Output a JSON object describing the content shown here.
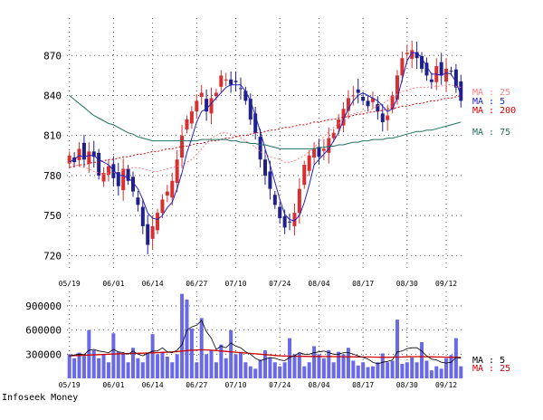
{
  "credit": "Infoseek Money",
  "colors": {
    "up": "#d83030",
    "down": "#20208a",
    "ma5": "#2020c0",
    "ma25": "#ff8080",
    "ma75": "#207060",
    "ma200": "#d00000",
    "volume": "#6a6ae8",
    "volume_ma5": "#000000",
    "volume_ma25": "#d00000",
    "grid": "#555555"
  },
  "chart_data": [
    {
      "type": "candlestick",
      "y_ticks": [
        720,
        750,
        780,
        810,
        840,
        870
      ],
      "ylim": [
        708,
        898
      ],
      "x_tick_labels": [
        "05/19",
        "06/01",
        "06/14",
        "06/27",
        "07/10",
        "07/24",
        "08/04",
        "08/17",
        "08/30",
        "09/12"
      ],
      "legend": [
        {
          "label": "MA : 25",
          "color_key": "ma25"
        },
        {
          "label": "MA : 5",
          "color_key": "ma5"
        },
        {
          "label": "MA : 200",
          "color_key": "ma200"
        },
        {
          "label": "MA : 75",
          "color_key": "ma75"
        }
      ],
      "closes": [
        795,
        790,
        800,
        792,
        798,
        794,
        780,
        782,
        787,
        778,
        772,
        785,
        776,
        768,
        758,
        742,
        728,
        742,
        752,
        762,
        768,
        776,
        792,
        810,
        822,
        828,
        836,
        842,
        828,
        838,
        842,
        855,
        852,
        848,
        850,
        845,
        836,
        822,
        812,
        792,
        780,
        770,
        758,
        748,
        741,
        745,
        752,
        770,
        788,
        795,
        800,
        794,
        800,
        808,
        812,
        822,
        830,
        838,
        840,
        842,
        836,
        832,
        838,
        828,
        820,
        825,
        840,
        855,
        868,
        872,
        874,
        868,
        860,
        855,
        850,
        862,
        855,
        860,
        858,
        846,
        836
      ],
      "ma5": [
        790,
        792,
        795,
        794,
        795,
        795,
        792,
        790,
        788,
        784,
        780,
        780,
        778,
        775,
        770,
        762,
        752,
        748,
        747,
        750,
        756,
        760,
        770,
        782,
        797,
        808,
        820,
        828,
        830,
        834,
        838,
        842,
        846,
        848,
        848,
        848,
        843,
        836,
        825,
        813,
        800,
        788,
        775,
        762,
        751,
        747,
        746,
        750,
        760,
        773,
        788,
        792,
        796,
        800,
        806,
        812,
        822,
        830,
        836,
        840,
        842,
        840,
        838,
        836,
        832,
        828,
        830,
        838,
        852,
        866,
        872,
        872,
        868,
        862,
        856,
        856,
        855,
        857,
        856,
        850,
        840
      ],
      "ma25": [
        790,
        788,
        787,
        786,
        785,
        783,
        782,
        781,
        782,
        782,
        783,
        784,
        785,
        786,
        786,
        785,
        784,
        783,
        783,
        784,
        785,
        786,
        787,
        788,
        790,
        792,
        796,
        800,
        804,
        808,
        810,
        812,
        812,
        811,
        810,
        808,
        806,
        804,
        801,
        798,
        796,
        794,
        793,
        792,
        790,
        790,
        791,
        793,
        795,
        798,
        801,
        805,
        809,
        813,
        816,
        819,
        822,
        825,
        826,
        827,
        828,
        829,
        830,
        832,
        834,
        836,
        839,
        841,
        843,
        844,
        845,
        846,
        846,
        846,
        847,
        847,
        847,
        848,
        848,
        847,
        846
      ],
      "ma75": [
        840,
        837,
        834,
        831,
        828,
        825,
        823,
        821,
        819,
        818,
        816,
        814,
        812,
        811,
        809,
        808,
        807,
        806,
        806,
        806,
        806,
        806,
        806,
        806,
        806,
        806,
        806,
        807,
        807,
        807,
        807,
        807,
        807,
        806,
        806,
        805,
        805,
        804,
        804,
        803,
        803,
        802,
        801,
        800,
        800,
        800,
        800,
        800,
        800,
        800,
        800,
        801,
        801,
        802,
        802,
        803,
        803,
        804,
        805,
        805,
        806,
        806,
        807,
        807,
        807,
        808,
        808,
        809,
        810,
        811,
        812,
        813,
        813,
        814,
        814,
        815,
        816,
        817,
        818,
        819,
        820
      ],
      "ma200": [
        786,
        787,
        788,
        788,
        789,
        790,
        790,
        791,
        792,
        792,
        793,
        794,
        794,
        795,
        796,
        796,
        797,
        798,
        798,
        799,
        800,
        800,
        801,
        802,
        802,
        803,
        804,
        804,
        805,
        806,
        806,
        807,
        808,
        808,
        809,
        810,
        810,
        811,
        812,
        812,
        813,
        814,
        814,
        815,
        816,
        816,
        817,
        818,
        818,
        819,
        820,
        820,
        821,
        822,
        822,
        823,
        824,
        824,
        825,
        826,
        826,
        827,
        828,
        828,
        829,
        830,
        830,
        831,
        832,
        832,
        833,
        834,
        834,
        835,
        836,
        836,
        837,
        838,
        838,
        839,
        840
      ]
    },
    {
      "type": "bar",
      "y_ticks": [
        300000,
        600000,
        900000
      ],
      "y_tick_labels": [
        "300000",
        "600000",
        "900000"
      ],
      "ylim": [
        0,
        1080000
      ],
      "x_tick_labels": [
        "05/19",
        "06/01",
        "06/14",
        "06/27",
        "07/10",
        "07/24",
        "08/04",
        "08/17",
        "08/30",
        "09/12"
      ],
      "legend": [
        {
          "label": "MA : 5",
          "color_key": "volume_ma5"
        },
        {
          "label": "MA : 25",
          "color_key": "volume_ma25"
        }
      ],
      "volumes": [
        300000,
        250000,
        320000,
        280000,
        600000,
        350000,
        250000,
        300000,
        200000,
        560000,
        330000,
        300000,
        200000,
        380000,
        250000,
        200000,
        320000,
        550000,
        300000,
        330000,
        270000,
        200000,
        300000,
        1050000,
        980000,
        620000,
        200000,
        750000,
        300000,
        350000,
        200000,
        420000,
        250000,
        600000,
        300000,
        330000,
        200000,
        150000,
        120000,
        230000,
        350000,
        260000,
        200000,
        150000,
        200000,
        500000,
        300000,
        320000,
        150000,
        200000,
        400000,
        300000,
        250000,
        350000,
        200000,
        330000,
        300000,
        380000,
        220000,
        160000,
        200000,
        140000,
        150000,
        200000,
        310000,
        200000,
        220000,
        730000,
        180000,
        200000,
        260000,
        200000,
        450000,
        220000,
        100000,
        150000,
        120000,
        250000,
        290000,
        500000,
        150000
      ],
      "vol_ma5": [
        280000,
        290000,
        300000,
        295000,
        350000,
        360000,
        340000,
        330000,
        320000,
        360000,
        330000,
        320000,
        300000,
        340000,
        300000,
        280000,
        310000,
        340000,
        340000,
        380000,
        330000,
        320000,
        350000,
        420000,
        600000,
        640000,
        660000,
        720000,
        580000,
        500000,
        360000,
        400000,
        380000,
        440000,
        400000,
        380000,
        330000,
        300000,
        250000,
        220000,
        240000,
        260000,
        250000,
        230000,
        220000,
        260000,
        280000,
        320000,
        300000,
        300000,
        320000,
        330000,
        340000,
        320000,
        300000,
        300000,
        320000,
        320000,
        300000,
        280000,
        260000,
        240000,
        200000,
        180000,
        200000,
        210000,
        230000,
        330000,
        340000,
        370000,
        380000,
        380000,
        340000,
        280000,
        240000,
        230000,
        200000,
        190000,
        200000,
        260000,
        250000
      ],
      "vol_ma25": [
        280000,
        282000,
        285000,
        287000,
        290000,
        292000,
        295000,
        297000,
        300000,
        303000,
        305000,
        306000,
        308000,
        310000,
        312000,
        313000,
        315000,
        318000,
        320000,
        323000,
        325000,
        328000,
        332000,
        340000,
        345000,
        350000,
        352000,
        355000,
        353000,
        350000,
        345000,
        340000,
        335000,
        330000,
        325000,
        320000,
        315000,
        310000,
        305000,
        300000,
        295000,
        290000,
        285000,
        280000,
        278000,
        276000,
        275000,
        274000,
        273000,
        272000,
        272000,
        272000,
        271000,
        271000,
        270000,
        270000,
        269000,
        268000,
        268000,
        267000,
        266000,
        265000,
        264000,
        263000,
        262000,
        262000,
        263000,
        264000,
        266000,
        268000,
        270000,
        270000,
        270000,
        269000,
        268000,
        266000,
        265000,
        263000,
        262000,
        261000,
        260000
      ]
    }
  ]
}
